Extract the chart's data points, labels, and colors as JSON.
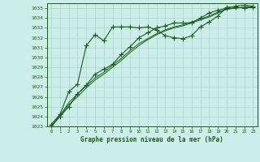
{
  "title": "Graphe pression niveau de la mer (hPa)",
  "bg_color": "#cceee8",
  "grid_color": "#aad4cc",
  "line_color": "#1a5c1a",
  "marker_color": "#1a5c1a",
  "xlim": [
    -0.5,
    23.5
  ],
  "ylim": [
    1023,
    1035.5
  ],
  "xticks": [
    0,
    1,
    2,
    3,
    4,
    5,
    6,
    7,
    8,
    9,
    10,
    11,
    12,
    13,
    14,
    15,
    16,
    17,
    18,
    19,
    20,
    21,
    22,
    23
  ],
  "yticks": [
    1023,
    1024,
    1025,
    1026,
    1027,
    1028,
    1029,
    1030,
    1031,
    1032,
    1033,
    1034,
    1035
  ],
  "series": [
    {
      "x": [
        0,
        1,
        2,
        3,
        4,
        5,
        6,
        7,
        8,
        9,
        10,
        11,
        12,
        13,
        14,
        15,
        16,
        17,
        18,
        19,
        20,
        21,
        22,
        23
      ],
      "y": [
        1023.0,
        1024.0,
        1025.0,
        1026.3,
        1027.2,
        1028.3,
        1028.8,
        1029.3,
        1030.3,
        1031.1,
        1032.0,
        1032.5,
        1033.0,
        1033.2,
        1033.5,
        1033.5,
        1033.5,
        1034.0,
        1034.5,
        1034.8,
        1035.0,
        1035.2,
        1035.3,
        1035.2
      ],
      "marker": "+",
      "marker_size": 4,
      "linewidth": 0.8,
      "dashed": false
    },
    {
      "x": [
        0,
        1,
        2,
        3,
        4,
        5,
        6,
        7,
        8,
        9,
        10,
        11,
        12,
        13,
        14,
        15,
        16,
        17,
        18,
        19,
        20,
        21,
        22,
        23
      ],
      "y": [
        1023.2,
        1024.2,
        1026.5,
        1027.3,
        1031.2,
        1032.3,
        1031.7,
        1033.1,
        1033.1,
        1033.1,
        1033.0,
        1033.1,
        1032.8,
        1032.2,
        1032.0,
        1031.9,
        1032.2,
        1033.1,
        1033.6,
        1034.2,
        1035.1,
        1035.1,
        1035.0,
        1035.1
      ],
      "marker": "+",
      "marker_size": 4,
      "linewidth": 0.8,
      "dashed": false
    },
    {
      "x": [
        0,
        1,
        2,
        3,
        4,
        5,
        6,
        7,
        8,
        9,
        10,
        11,
        12,
        13,
        14,
        15,
        16,
        17,
        18,
        19,
        20,
        21,
        22,
        23
      ],
      "y": [
        1023.0,
        1024.1,
        1025.4,
        1026.3,
        1027.1,
        1027.9,
        1028.5,
        1029.2,
        1029.9,
        1030.7,
        1031.4,
        1031.9,
        1032.4,
        1032.8,
        1033.1,
        1033.3,
        1033.6,
        1033.9,
        1034.2,
        1034.6,
        1034.9,
        1035.0,
        1035.1,
        1035.1
      ],
      "marker": null,
      "marker_size": 0,
      "linewidth": 0.7,
      "dashed": false
    },
    {
      "x": [
        0,
        1,
        2,
        3,
        4,
        5,
        6,
        7,
        8,
        9,
        10,
        11,
        12,
        13,
        14,
        15,
        16,
        17,
        18,
        19,
        20,
        21,
        22,
        23
      ],
      "y": [
        1023.0,
        1024.0,
        1025.2,
        1026.0,
        1026.9,
        1027.7,
        1028.3,
        1029.0,
        1029.7,
        1030.5,
        1031.2,
        1031.8,
        1032.3,
        1032.7,
        1033.0,
        1033.2,
        1033.5,
        1033.8,
        1034.1,
        1034.5,
        1034.9,
        1035.0,
        1035.1,
        1035.1
      ],
      "marker": null,
      "marker_size": 0,
      "linewidth": 0.7,
      "dashed": false
    }
  ]
}
